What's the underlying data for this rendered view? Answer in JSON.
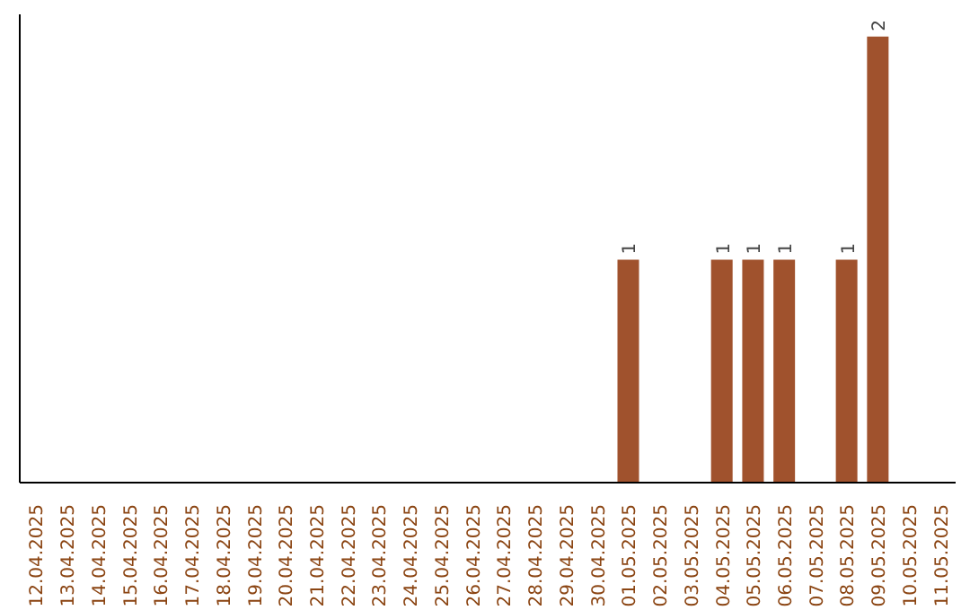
{
  "chart_data": {
    "type": "bar",
    "categories": [
      "12.04.2025",
      "13.04.2025",
      "14.04.2025",
      "15.04.2025",
      "16.04.2025",
      "17.04.2025",
      "18.04.2025",
      "19.04.2025",
      "20.04.2025",
      "21.04.2025",
      "22.04.2025",
      "23.04.2025",
      "24.04.2025",
      "25.04.2025",
      "26.04.2025",
      "27.04.2025",
      "28.04.2025",
      "29.04.2025",
      "30.04.2025",
      "01.05.2025",
      "02.05.2025",
      "03.05.2025",
      "04.05.2025",
      "05.05.2025",
      "06.05.2025",
      "07.05.2025",
      "08.05.2025",
      "09.05.2025",
      "10.05.2025",
      "11.05.2025"
    ],
    "values": [
      null,
      null,
      null,
      null,
      null,
      null,
      null,
      null,
      null,
      null,
      null,
      null,
      null,
      null,
      null,
      null,
      null,
      null,
      null,
      1,
      null,
      null,
      1,
      1,
      1,
      null,
      1,
      2,
      null,
      null
    ],
    "data_labels": true,
    "color": "#a0522d",
    "ylim": [
      0,
      2.1
    ],
    "grid": false,
    "legend": false
  }
}
